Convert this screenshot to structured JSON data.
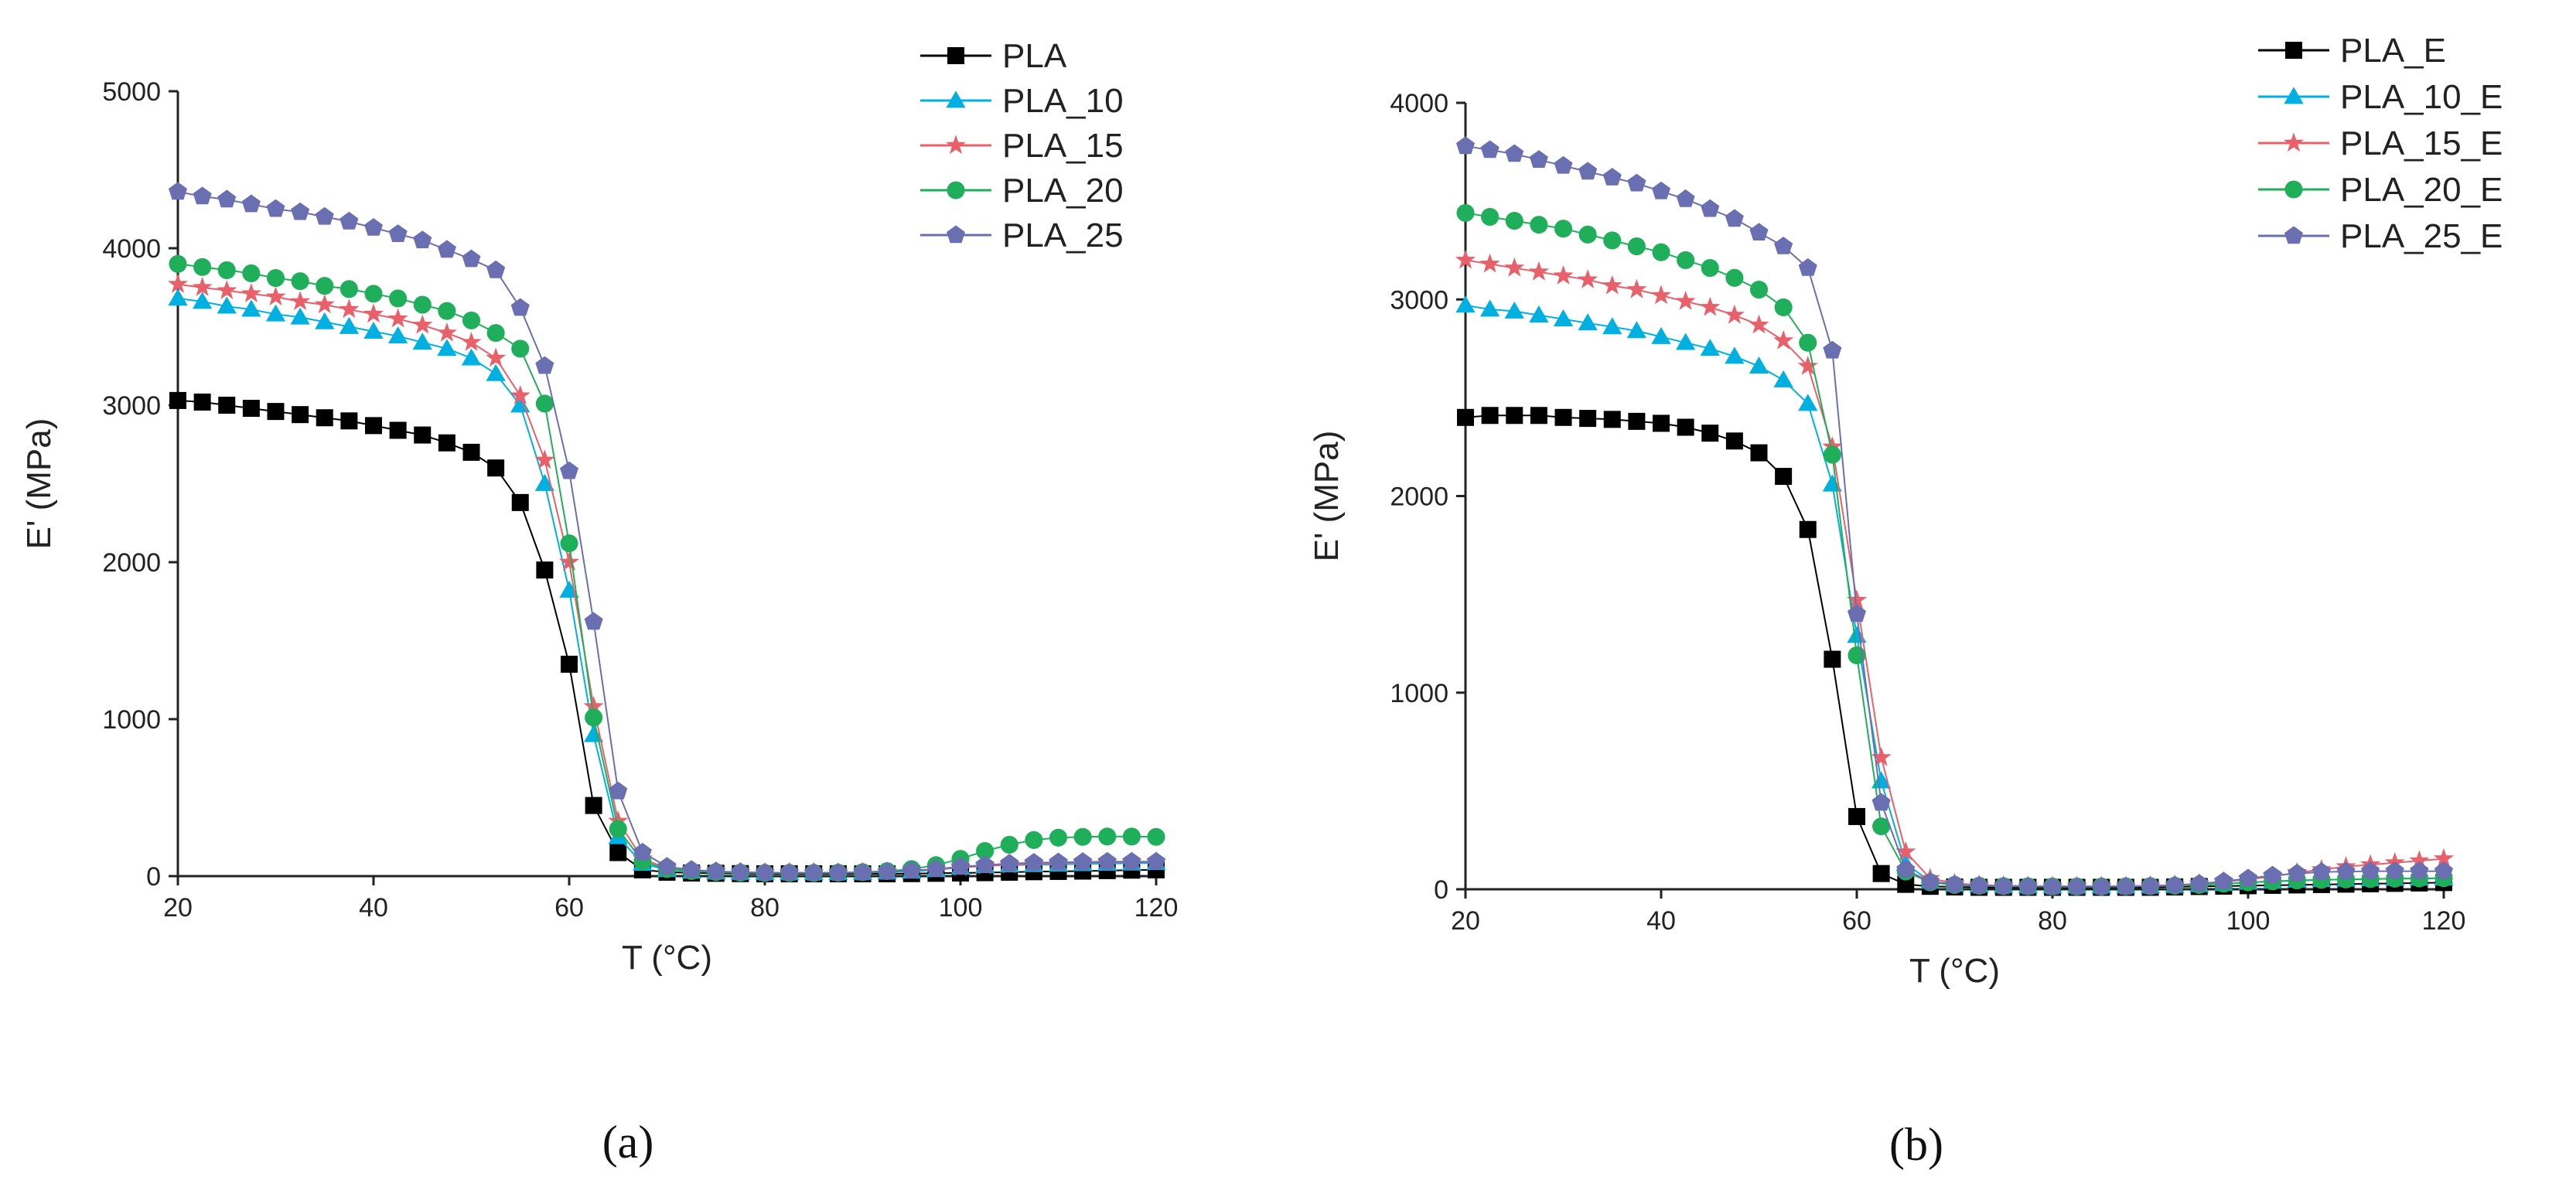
{
  "colors": {
    "PLA": "#000000",
    "PLA_10": "#00b0e0",
    "PLA_15": "#e8606a",
    "PLA_20": "#1fae5a",
    "PLA_25": "#6a6fb2",
    "axis": "#222222"
  },
  "chart_data": [
    {
      "type": "line",
      "panel_label": "(a)",
      "title": "",
      "xlabel": "T (°C)",
      "ylabel": "E' (MPa)",
      "xlim": [
        20,
        120
      ],
      "ylim": [
        0,
        5000
      ],
      "xticks": [
        20,
        40,
        60,
        80,
        100,
        120
      ],
      "yticks": [
        0,
        1000,
        2000,
        3000,
        4000,
        5000
      ],
      "legend_position": "top-right",
      "x": [
        20,
        22.5,
        25,
        27.5,
        30,
        32.5,
        35,
        37.5,
        40,
        42.5,
        45,
        47.5,
        50,
        52.5,
        55,
        57.5,
        60,
        62.5,
        65,
        67.5,
        70,
        72.5,
        75,
        77.5,
        80,
        82.5,
        85,
        87.5,
        90,
        92.5,
        95,
        97.5,
        100,
        102.5,
        105,
        107.5,
        110,
        112.5,
        115,
        117.5,
        120
      ],
      "series": [
        {
          "name": "PLA",
          "color_key": "PLA",
          "marker": "square",
          "values": [
            3030,
            3020,
            3000,
            2980,
            2960,
            2940,
            2920,
            2900,
            2870,
            2840,
            2810,
            2760,
            2700,
            2600,
            2380,
            1950,
            1350,
            450,
            150,
            40,
            25,
            20,
            18,
            16,
            15,
            15,
            15,
            15,
            15,
            15,
            16,
            18,
            20,
            22,
            25,
            28,
            30,
            32,
            35,
            38,
            40
          ]
        },
        {
          "name": "PLA_10",
          "color_key": "PLA_10",
          "marker": "triangle",
          "values": [
            3680,
            3660,
            3630,
            3610,
            3580,
            3560,
            3530,
            3500,
            3470,
            3440,
            3400,
            3360,
            3300,
            3200,
            3000,
            2500,
            1820,
            900,
            250,
            80,
            40,
            30,
            25,
            22,
            20,
            20,
            20,
            20,
            22,
            25,
            30,
            40,
            55,
            65,
            70,
            72,
            75,
            78,
            80,
            82,
            85
          ]
        },
        {
          "name": "PLA_15",
          "color_key": "PLA_15",
          "marker": "star",
          "values": [
            3770,
            3750,
            3730,
            3710,
            3690,
            3660,
            3640,
            3610,
            3580,
            3550,
            3510,
            3460,
            3400,
            3300,
            3060,
            2650,
            2000,
            1080,
            350,
            110,
            50,
            35,
            28,
            24,
            22,
            22,
            22,
            22,
            24,
            28,
            35,
            45,
            55,
            65,
            72,
            78,
            82,
            86,
            88,
            90,
            92
          ]
        },
        {
          "name": "PLA_20",
          "color_key": "PLA_20",
          "marker": "circle",
          "values": [
            3900,
            3880,
            3860,
            3840,
            3810,
            3790,
            3760,
            3740,
            3710,
            3680,
            3640,
            3600,
            3540,
            3460,
            3360,
            3010,
            2120,
            1010,
            300,
            95,
            45,
            32,
            26,
            22,
            20,
            20,
            20,
            22,
            25,
            32,
            45,
            70,
            110,
            160,
            200,
            230,
            245,
            250,
            252,
            252,
            250
          ]
        },
        {
          "name": "PLA_25",
          "color_key": "PLA_25",
          "marker": "pentagon",
          "values": [
            4360,
            4330,
            4310,
            4280,
            4250,
            4230,
            4200,
            4170,
            4130,
            4090,
            4050,
            3990,
            3930,
            3860,
            3620,
            3250,
            2580,
            1620,
            540,
            150,
            60,
            40,
            30,
            25,
            22,
            22,
            22,
            22,
            24,
            28,
            35,
            45,
            60,
            70,
            80,
            85,
            88,
            90,
            92,
            92,
            92
          ]
        }
      ]
    },
    {
      "type": "line",
      "panel_label": "(b)",
      "title": "",
      "xlabel": "T (°C)",
      "ylabel": "E' (MPa)",
      "xlim": [
        20,
        120
      ],
      "ylim": [
        0,
        4000
      ],
      "xticks": [
        20,
        40,
        60,
        80,
        100,
        120
      ],
      "yticks": [
        0,
        1000,
        2000,
        3000,
        4000
      ],
      "legend_position": "top-right",
      "x": [
        20,
        22.5,
        25,
        27.5,
        30,
        32.5,
        35,
        37.5,
        40,
        42.5,
        45,
        47.5,
        50,
        52.5,
        55,
        57.5,
        60,
        62.5,
        65,
        67.5,
        70,
        72.5,
        75,
        77.5,
        80,
        82.5,
        85,
        87.5,
        90,
        92.5,
        95,
        97.5,
        100,
        102.5,
        105,
        107.5,
        110,
        112.5,
        115,
        117.5,
        120
      ],
      "series": [
        {
          "name": "PLA_E",
          "color_key": "PLA",
          "marker": "square",
          "values": [
            2400,
            2410,
            2410,
            2410,
            2400,
            2395,
            2390,
            2380,
            2370,
            2350,
            2320,
            2280,
            2220,
            2100,
            1830,
            1170,
            370,
            80,
            25,
            15,
            12,
            10,
            10,
            10,
            10,
            10,
            10,
            10,
            10,
            12,
            14,
            16,
            18,
            20,
            22,
            24,
            26,
            28,
            30,
            32,
            34
          ]
        },
        {
          "name": "PLA_10_E",
          "color_key": "PLA_10",
          "marker": "triangle",
          "values": [
            2970,
            2950,
            2940,
            2920,
            2900,
            2880,
            2860,
            2840,
            2810,
            2780,
            2750,
            2710,
            2660,
            2590,
            2470,
            2060,
            1290,
            550,
            130,
            40,
            25,
            20,
            18,
            16,
            15,
            15,
            15,
            15,
            16,
            18,
            22,
            28,
            35,
            40,
            45,
            48,
            50,
            52,
            54,
            55,
            56
          ]
        },
        {
          "name": "PLA_15_E",
          "color_key": "PLA_15",
          "marker": "star",
          "values": [
            3200,
            3180,
            3160,
            3140,
            3120,
            3100,
            3070,
            3050,
            3020,
            2990,
            2960,
            2920,
            2870,
            2790,
            2660,
            2250,
            1470,
            670,
            190,
            55,
            30,
            22,
            18,
            16,
            15,
            15,
            15,
            16,
            18,
            22,
            28,
            38,
            50,
            65,
            85,
            100,
            115,
            125,
            135,
            145,
            155
          ]
        },
        {
          "name": "PLA_20_E",
          "color_key": "PLA_20",
          "marker": "circle",
          "values": [
            3440,
            3420,
            3400,
            3380,
            3360,
            3330,
            3300,
            3270,
            3240,
            3200,
            3160,
            3110,
            3050,
            2960,
            2780,
            2210,
            1190,
            320,
            90,
            35,
            22,
            18,
            16,
            15,
            14,
            14,
            14,
            15,
            16,
            18,
            22,
            28,
            35,
            40,
            45,
            48,
            50,
            52,
            54,
            55,
            56
          ]
        },
        {
          "name": "PLA_25_E",
          "color_key": "PLA_25",
          "marker": "pentagon",
          "values": [
            3780,
            3760,
            3740,
            3710,
            3680,
            3650,
            3620,
            3590,
            3550,
            3510,
            3460,
            3410,
            3340,
            3270,
            3160,
            2740,
            1400,
            440,
            100,
            38,
            24,
            18,
            15,
            14,
            13,
            13,
            13,
            14,
            16,
            20,
            28,
            40,
            55,
            70,
            80,
            88,
            90,
            92,
            92,
            92,
            92
          ]
        }
      ]
    }
  ]
}
